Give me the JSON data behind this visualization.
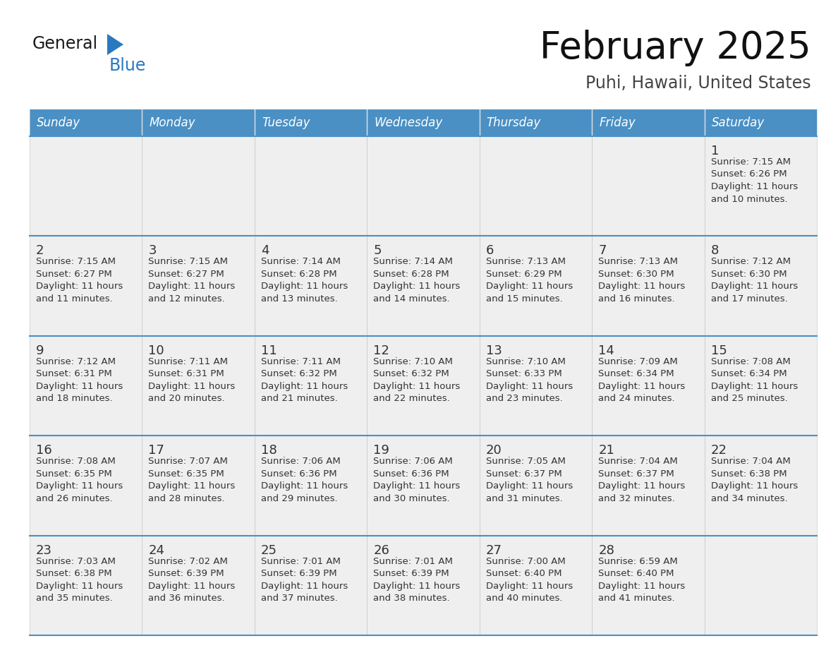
{
  "title": "February 2025",
  "subtitle": "Puhi, Hawaii, United States",
  "days_of_week": [
    "Sunday",
    "Monday",
    "Tuesday",
    "Wednesday",
    "Thursday",
    "Friday",
    "Saturday"
  ],
  "header_bg": "#4A90C4",
  "header_text": "#FFFFFF",
  "cell_bg_light": "#EFEFEF",
  "cell_bg_white": "#EFEFEF",
  "separator_color": "#4A90C4",
  "text_color": "#333333",
  "logo_general_color": "#1a1a1a",
  "logo_blue_color": "#2979BF",
  "calendar_data": [
    [
      null,
      null,
      null,
      null,
      null,
      null,
      {
        "day": "1",
        "sunrise": "7:15 AM",
        "sunset": "6:26 PM",
        "daylight_h": "11 hours",
        "daylight_m": "and 10 minutes."
      }
    ],
    [
      {
        "day": "2",
        "sunrise": "7:15 AM",
        "sunset": "6:27 PM",
        "daylight_h": "11 hours",
        "daylight_m": "and 11 minutes."
      },
      {
        "day": "3",
        "sunrise": "7:15 AM",
        "sunset": "6:27 PM",
        "daylight_h": "11 hours",
        "daylight_m": "and 12 minutes."
      },
      {
        "day": "4",
        "sunrise": "7:14 AM",
        "sunset": "6:28 PM",
        "daylight_h": "11 hours",
        "daylight_m": "and 13 minutes."
      },
      {
        "day": "5",
        "sunrise": "7:14 AM",
        "sunset": "6:28 PM",
        "daylight_h": "11 hours",
        "daylight_m": "and 14 minutes."
      },
      {
        "day": "6",
        "sunrise": "7:13 AM",
        "sunset": "6:29 PM",
        "daylight_h": "11 hours",
        "daylight_m": "and 15 minutes."
      },
      {
        "day": "7",
        "sunrise": "7:13 AM",
        "sunset": "6:30 PM",
        "daylight_h": "11 hours",
        "daylight_m": "and 16 minutes."
      },
      {
        "day": "8",
        "sunrise": "7:12 AM",
        "sunset": "6:30 PM",
        "daylight_h": "11 hours",
        "daylight_m": "and 17 minutes."
      }
    ],
    [
      {
        "day": "9",
        "sunrise": "7:12 AM",
        "sunset": "6:31 PM",
        "daylight_h": "11 hours",
        "daylight_m": "and 18 minutes."
      },
      {
        "day": "10",
        "sunrise": "7:11 AM",
        "sunset": "6:31 PM",
        "daylight_h": "11 hours",
        "daylight_m": "and 20 minutes."
      },
      {
        "day": "11",
        "sunrise": "7:11 AM",
        "sunset": "6:32 PM",
        "daylight_h": "11 hours",
        "daylight_m": "and 21 minutes."
      },
      {
        "day": "12",
        "sunrise": "7:10 AM",
        "sunset": "6:32 PM",
        "daylight_h": "11 hours",
        "daylight_m": "and 22 minutes."
      },
      {
        "day": "13",
        "sunrise": "7:10 AM",
        "sunset": "6:33 PM",
        "daylight_h": "11 hours",
        "daylight_m": "and 23 minutes."
      },
      {
        "day": "14",
        "sunrise": "7:09 AM",
        "sunset": "6:34 PM",
        "daylight_h": "11 hours",
        "daylight_m": "and 24 minutes."
      },
      {
        "day": "15",
        "sunrise": "7:08 AM",
        "sunset": "6:34 PM",
        "daylight_h": "11 hours",
        "daylight_m": "and 25 minutes."
      }
    ],
    [
      {
        "day": "16",
        "sunrise": "7:08 AM",
        "sunset": "6:35 PM",
        "daylight_h": "11 hours",
        "daylight_m": "and 26 minutes."
      },
      {
        "day": "17",
        "sunrise": "7:07 AM",
        "sunset": "6:35 PM",
        "daylight_h": "11 hours",
        "daylight_m": "and 28 minutes."
      },
      {
        "day": "18",
        "sunrise": "7:06 AM",
        "sunset": "6:36 PM",
        "daylight_h": "11 hours",
        "daylight_m": "and 29 minutes."
      },
      {
        "day": "19",
        "sunrise": "7:06 AM",
        "sunset": "6:36 PM",
        "daylight_h": "11 hours",
        "daylight_m": "and 30 minutes."
      },
      {
        "day": "20",
        "sunrise": "7:05 AM",
        "sunset": "6:37 PM",
        "daylight_h": "11 hours",
        "daylight_m": "and 31 minutes."
      },
      {
        "day": "21",
        "sunrise": "7:04 AM",
        "sunset": "6:37 PM",
        "daylight_h": "11 hours",
        "daylight_m": "and 32 minutes."
      },
      {
        "day": "22",
        "sunrise": "7:04 AM",
        "sunset": "6:38 PM",
        "daylight_h": "11 hours",
        "daylight_m": "and 34 minutes."
      }
    ],
    [
      {
        "day": "23",
        "sunrise": "7:03 AM",
        "sunset": "6:38 PM",
        "daylight_h": "11 hours",
        "daylight_m": "and 35 minutes."
      },
      {
        "day": "24",
        "sunrise": "7:02 AM",
        "sunset": "6:39 PM",
        "daylight_h": "11 hours",
        "daylight_m": "and 36 minutes."
      },
      {
        "day": "25",
        "sunrise": "7:01 AM",
        "sunset": "6:39 PM",
        "daylight_h": "11 hours",
        "daylight_m": "and 37 minutes."
      },
      {
        "day": "26",
        "sunrise": "7:01 AM",
        "sunset": "6:39 PM",
        "daylight_h": "11 hours",
        "daylight_m": "and 38 minutes."
      },
      {
        "day": "27",
        "sunrise": "7:00 AM",
        "sunset": "6:40 PM",
        "daylight_h": "11 hours",
        "daylight_m": "and 40 minutes."
      },
      {
        "day": "28",
        "sunrise": "6:59 AM",
        "sunset": "6:40 PM",
        "daylight_h": "11 hours",
        "daylight_m": "and 41 minutes."
      },
      null
    ]
  ]
}
